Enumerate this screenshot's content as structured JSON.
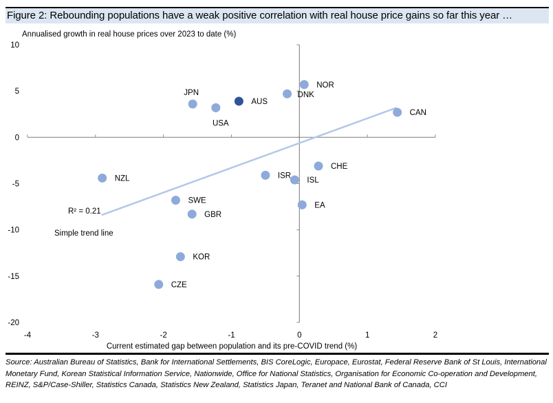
{
  "figure": {
    "title": "Figure 2: Rebounding populations have a weak positive correlation with real house price gains so far this year …",
    "source": "Source: Australian Bureau of Statistics, Bank for International Settlements, BIS CoreLogic, Europace, Eurostat, Federal Reserve Bank of St Louis, International Monetary Fund, Korean Statistical Information Service, Nationwide, Office for National Statistics, Organisation for Economic Co-operation and Development, REINZ, S&P/Case-Shiller, Statistics Canada, Statistics New Zealand, Statistics Japan, Teranet and National Bank of Canada, CCI"
  },
  "chart_data": {
    "type": "scatter",
    "title": "Figure 2: Rebounding populations have a weak positive correlation with real house price gains so far this year …",
    "xlabel": "Current  estimated gap between population and its pre-COVID trend (%)",
    "ylabel": "Annualised growth in real house prices over 2023 to date (%)",
    "xlim": [
      -4,
      2
    ],
    "ylim": [
      -20,
      10
    ],
    "xticks": [
      -4,
      -3,
      -2,
      -1,
      0,
      1,
      2
    ],
    "yticks": [
      10,
      5,
      0,
      -5,
      -10,
      -15,
      -20
    ],
    "grid": false,
    "colors": {
      "point": "#8eaadb",
      "highlight": "#2f5597",
      "trend": "#b4c7e7"
    },
    "points": [
      {
        "label": "JPN",
        "x": -1.57,
        "y": 3.6,
        "highlight": false,
        "label_pos": "above"
      },
      {
        "label": "USA",
        "x": -1.23,
        "y": 3.2,
        "highlight": false,
        "label_pos": "below"
      },
      {
        "label": "AUS",
        "x": -0.89,
        "y": 3.9,
        "highlight": true,
        "label_pos": "right"
      },
      {
        "label": "DNK",
        "x": -0.18,
        "y": 4.7,
        "highlight": false,
        "label_pos": "right"
      },
      {
        "label": "NOR",
        "x": 0.07,
        "y": 5.7,
        "highlight": false,
        "label_pos": "right"
      },
      {
        "label": "CAN",
        "x": 1.44,
        "y": 2.7,
        "highlight": false,
        "label_pos": "right"
      },
      {
        "label": "NZL",
        "x": -2.9,
        "y": -4.4,
        "highlight": false,
        "label_pos": "right"
      },
      {
        "label": "SWE",
        "x": -1.82,
        "y": -6.8,
        "highlight": false,
        "label_pos": "right"
      },
      {
        "label": "GBR",
        "x": -1.58,
        "y": -8.3,
        "highlight": false,
        "label_pos": "right"
      },
      {
        "label": "ISR",
        "x": -0.5,
        "y": -4.1,
        "highlight": false,
        "label_pos": "right"
      },
      {
        "label": "ISL",
        "x": -0.07,
        "y": -4.6,
        "highlight": false,
        "label_pos": "right"
      },
      {
        "label": "CHE",
        "x": 0.28,
        "y": -3.1,
        "highlight": false,
        "label_pos": "right"
      },
      {
        "label": "EA",
        "x": 0.04,
        "y": -7.3,
        "highlight": false,
        "label_pos": "right"
      },
      {
        "label": "KOR",
        "x": -1.75,
        "y": -12.9,
        "highlight": false,
        "label_pos": "right"
      },
      {
        "label": "CZE",
        "x": -2.07,
        "y": -15.9,
        "highlight": false,
        "label_pos": "right"
      }
    ],
    "trendline": {
      "x": [
        -2.91,
        1.43
      ],
      "y": [
        -8.4,
        3.2
      ],
      "r2_label": "R² = 0.21",
      "name": "Simple trend line"
    }
  }
}
